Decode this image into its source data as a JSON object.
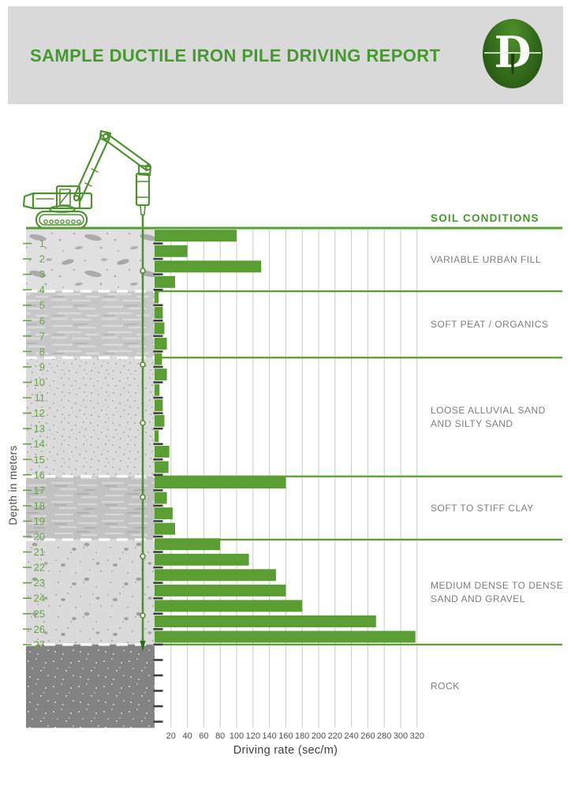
{
  "header": {
    "title": "SAMPLE DUCTILE IRON PILE DRIVING REPORT",
    "logo_letter": "D"
  },
  "soil": {
    "section_title": "SOIL CONDITIONS",
    "layers": [
      {
        "label_lines": [
          "VARIABLE URBAN FILL"
        ],
        "from_m": 0,
        "to_m": 4.1,
        "texture": "fill"
      },
      {
        "label_lines": [
          "SOFT PEAT / ORGANICS"
        ],
        "from_m": 4.1,
        "to_m": 8.4,
        "texture": "peat"
      },
      {
        "label_lines": [
          "LOOSE ALLUVIAL SAND",
          "AND SILTY SAND"
        ],
        "from_m": 8.4,
        "to_m": 16.1,
        "texture": "sand"
      },
      {
        "label_lines": [
          "SOFT TO STIFF CLAY"
        ],
        "from_m": 16.1,
        "to_m": 20.2,
        "texture": "clay"
      },
      {
        "label_lines": [
          "MEDIUM DENSE TO DENSE",
          "SAND AND GRAVEL"
        ],
        "from_m": 20.2,
        "to_m": 27,
        "texture": "gravel"
      },
      {
        "label_lines": [
          "ROCK"
        ],
        "from_m": 27,
        "to_m": 32.4,
        "texture": "rock"
      }
    ]
  },
  "chart_data": {
    "type": "bar",
    "orientation": "horizontal",
    "title": "",
    "xlabel": "Driving rate (sec/m)",
    "ylabel": "Depth in meters",
    "x_ticks": [
      20,
      40,
      60,
      80,
      100,
      120,
      140,
      160,
      180,
      200,
      220,
      240,
      260,
      280,
      300,
      320
    ],
    "xlim": [
      0,
      330
    ],
    "depth_m": [
      1,
      2,
      3,
      4,
      5,
      6,
      7,
      8,
      9,
      10,
      11,
      12,
      13,
      14,
      15,
      16,
      17,
      18,
      19,
      20,
      21,
      22,
      23,
      24,
      25,
      26,
      27
    ],
    "values_sec_per_m": [
      100,
      40,
      130,
      25,
      5,
      10,
      12,
      15,
      9,
      15,
      6,
      10,
      12,
      5,
      18,
      17,
      160,
      15,
      22,
      25,
      80,
      115,
      148,
      160,
      180,
      270,
      318
    ],
    "unlabeled_ticks_to_depth": 32,
    "grid": true,
    "legend": "none"
  },
  "colors": {
    "bar_green": "#5a9e33",
    "title_green": "#459a2d",
    "depth_label_green": "#6aa445",
    "header_bg": "#d9d9d9",
    "gridline": "#ccc9c9",
    "soil_text": "#7d7d7d",
    "axis_text": "#4f4f4f",
    "dark_tick": "#3c3c3c",
    "logo_dark_green": "#1e4a10",
    "rock_gray": "#828282"
  }
}
